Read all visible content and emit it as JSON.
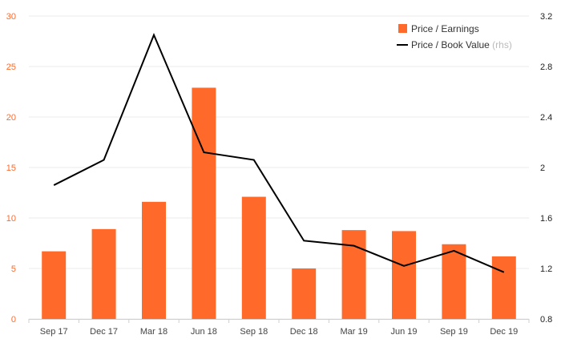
{
  "chart_data": {
    "type": "bar",
    "categories": [
      "Sep 17",
      "Dec 17",
      "Mar 18",
      "Jun 18",
      "Sep 18",
      "Dec 18",
      "Mar 19",
      "Jun 19",
      "Sep 19",
      "Dec 19"
    ],
    "series": [
      {
        "name": "Price / Earnings",
        "type": "bar",
        "axis": "left",
        "color": "#ff6a2b",
        "values": [
          6.7,
          8.9,
          11.6,
          22.9,
          12.1,
          5.0,
          8.8,
          8.7,
          7.4,
          6.2
        ]
      },
      {
        "name": "Price / Book Value",
        "name_suffix": "(rhs)",
        "type": "line",
        "axis": "right",
        "color": "#000000",
        "values": [
          1.86,
          2.06,
          3.05,
          2.12,
          2.06,
          1.42,
          1.38,
          1.22,
          1.34,
          1.17
        ]
      }
    ],
    "y_left": {
      "ylim": [
        0,
        30
      ],
      "ticks": [
        "0",
        "5",
        "10",
        "15",
        "20",
        "25",
        "30"
      ],
      "color": "#ff6a2b"
    },
    "y_right": {
      "ylim": [
        0.8,
        3.2
      ],
      "ticks": [
        "0.8",
        "1.2",
        "1.6",
        "2",
        "2.4",
        "2.8",
        "3.2"
      ]
    },
    "grid": true,
    "legend": "top-right",
    "title": "",
    "xlabel": "",
    "ylabel": ""
  }
}
